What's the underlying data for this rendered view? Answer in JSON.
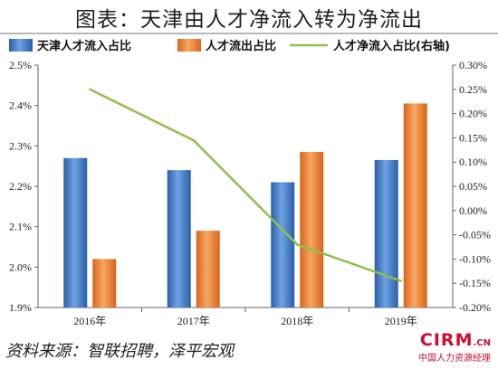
{
  "title": "图表：天津由人才净流入转为净流出",
  "source": "资料来源：智联招聘，泽平宏观",
  "watermark": {
    "brand": "CIRM",
    "suffix": ".CN",
    "tagline": "中国人力资源经理"
  },
  "colors": {
    "blue": "#3b78c9",
    "orange": "#ef7f2d",
    "line": "#8fbf4a",
    "axis": "#666666"
  },
  "chart_data": {
    "type": "bar",
    "categories": [
      "2016年",
      "2017年",
      "2018年",
      "2019年"
    ],
    "series": [
      {
        "name": "天津人才流入占比",
        "axis": "left",
        "type": "bar",
        "values": [
          2.27,
          2.24,
          2.21,
          2.265
        ]
      },
      {
        "name": "人才流出占比",
        "axis": "left",
        "type": "bar",
        "values": [
          2.02,
          2.09,
          2.285,
          2.405
        ]
      },
      {
        "name": "人才净流入占比(右轴)",
        "axis": "right",
        "type": "line",
        "values": [
          0.25,
          0.145,
          -0.07,
          -0.145
        ]
      }
    ],
    "y_left": {
      "min": 1.9,
      "max": 2.5,
      "step": 0.1,
      "ticks": [
        "1.9%",
        "2.0%",
        "2.1%",
        "2.2%",
        "2.3%",
        "2.4%",
        "2.5%"
      ]
    },
    "y_right": {
      "min": -0.2,
      "max": 0.3,
      "step": 0.05,
      "ticks": [
        "-0.20%",
        "-0.15%",
        "-0.10%",
        "-0.05%",
        "0.00%",
        "0.05%",
        "0.10%",
        "0.15%",
        "0.20%",
        "0.25%",
        "0.30%"
      ]
    },
    "legend_position": "top",
    "grid": false
  }
}
